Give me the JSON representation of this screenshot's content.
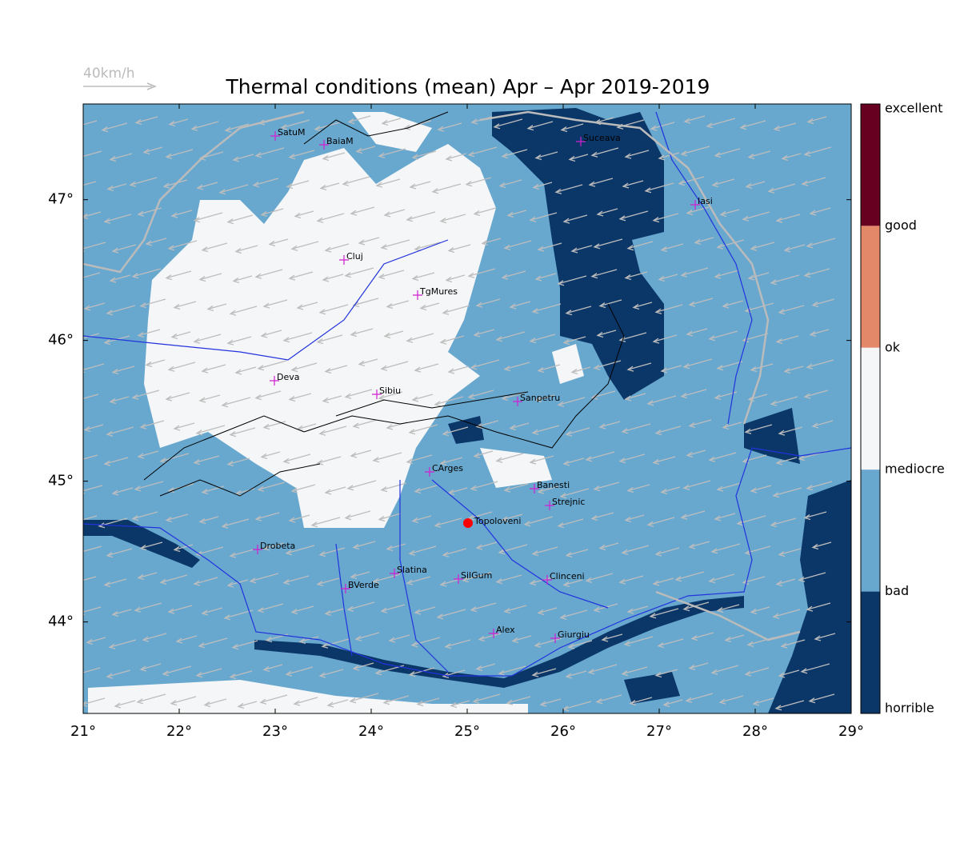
{
  "chart_data": {
    "type": "map",
    "title": "Thermal conditions (mean) Apr – Apr  2019-2019",
    "wind_legend": "40km/h",
    "xlim": [
      21,
      29
    ],
    "ylim": [
      43.35,
      47.68
    ],
    "xticks": [
      {
        "value": 21,
        "label": "21°"
      },
      {
        "value": 22,
        "label": "22°"
      },
      {
        "value": 23,
        "label": "23°"
      },
      {
        "value": 24,
        "label": "24°"
      },
      {
        "value": 25,
        "label": "25°"
      },
      {
        "value": 26,
        "label": "26°"
      },
      {
        "value": 27,
        "label": "27°"
      },
      {
        "value": 28,
        "label": "28°"
      },
      {
        "value": 29,
        "label": "29°"
      }
    ],
    "yticks": [
      {
        "value": 44,
        "label": "44°"
      },
      {
        "value": 45,
        "label": "45°"
      },
      {
        "value": 46,
        "label": "46°"
      },
      {
        "value": 47,
        "label": "47°"
      }
    ],
    "cities": [
      "SatuM",
      "BaiaM",
      "Suceava",
      "Iasi",
      "Cluj",
      "TgMures",
      "Deva",
      "Sibiu",
      "Sanpetru",
      "CArges",
      "Banesti",
      "Strejnic",
      "Drobeta",
      "Slatina",
      "SilGum",
      "Clinceni",
      "BVerde",
      "Alex",
      "Giurgiu"
    ],
    "site": "Topoloveni",
    "colorbar": {
      "labels": [
        "excellent",
        "good",
        "ok",
        "mediocre",
        "bad",
        "horrible"
      ],
      "colors": [
        "#670020",
        "#e4886a",
        "#f5f6f7",
        "#68a8cf",
        "#0b3668"
      ]
    }
  }
}
